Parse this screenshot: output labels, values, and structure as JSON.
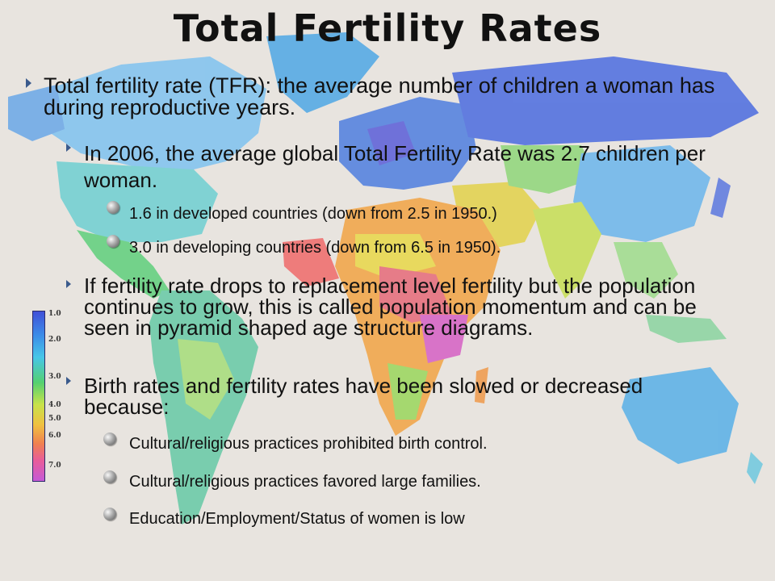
{
  "title": "Total Fertility Rates",
  "legend": {
    "labels": [
      "1.0",
      "2.0",
      "3.0",
      "4.0",
      "5.0",
      "6.0",
      "7.0"
    ]
  },
  "bullets": {
    "b1": "Total fertility rate (TFR): the average number of children a woman has during reproductive years.",
    "b1_1": "In 2006, the average global Total Fertility Rate was 2.7 children per woman.",
    "b1_1_1": "1.6 in developed countries (down from 2.5 in 1950.)",
    "b1_1_2": "3.0 in developing countries (down from 6.5 in 1950).",
    "b1_2": "If fertility rate drops to replacement level fertility but the population continues to grow, this is called population momentum and can be seen in pyramid shaped age structure diagrams.",
    "b1_3": "Birth rates and fertility rates have been slowed or decreased because:",
    "b1_3_1": "Cultural/religious practices prohibited birth control.",
    "b1_3_2": "Cultural/religious practices favored large families.",
    "b1_3_3": "Education/Employment/Status of women is low"
  },
  "colors": {
    "background": "#e8e4df",
    "ocean_tint": "#e8e4df",
    "bullet_arrow": "#3a5a8c"
  }
}
